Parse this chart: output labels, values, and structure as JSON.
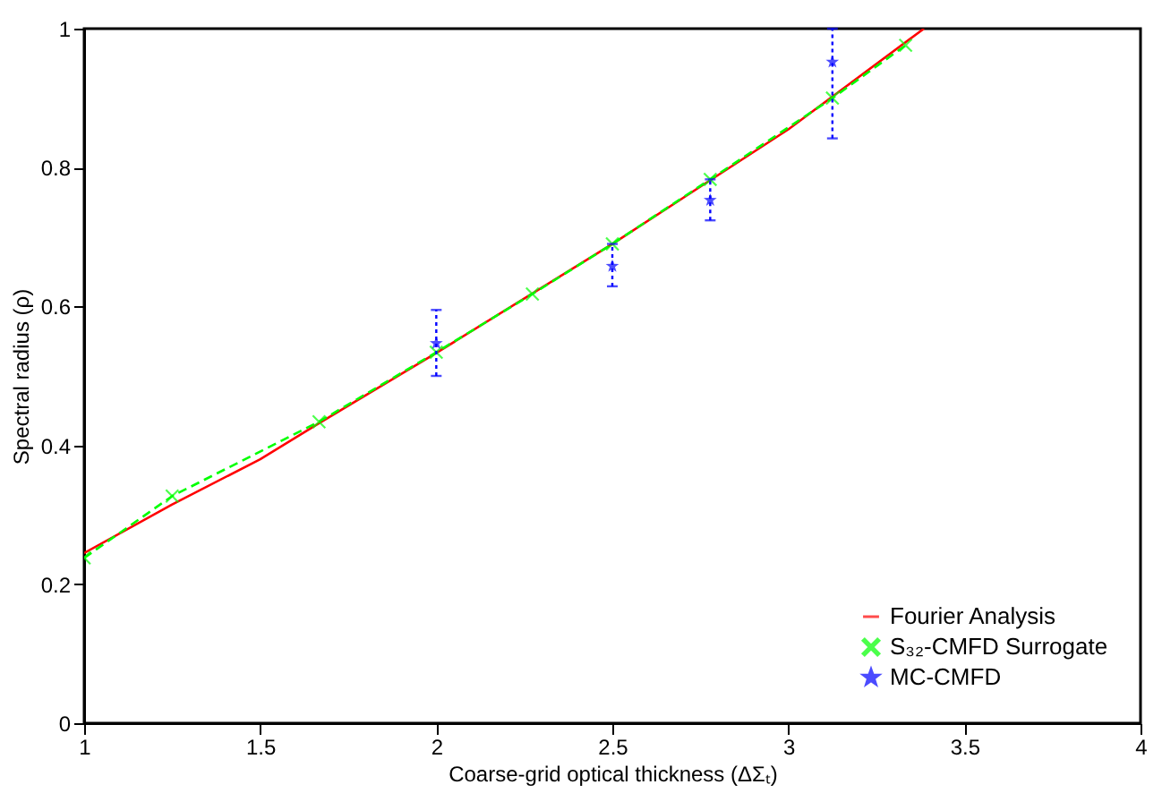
{
  "chart_data": {
    "type": "line",
    "xlabel": "Coarse-grid optical thickness (ΔΣₜ)",
    "ylabel": "Spectral radius (ρ)",
    "xlim": [
      1,
      4
    ],
    "xticks": [
      1,
      1.5,
      2,
      2.5,
      3,
      3.5,
      4
    ],
    "ylim": [
      0,
      1
    ],
    "yticks": [
      0,
      0.2,
      0.4,
      0.6,
      0.8,
      1
    ],
    "grid": false,
    "legend": "bottom right",
    "series": [
      {
        "name": "Fourier Analysis",
        "color": "#ff0000",
        "marker": "none",
        "line_style": "solid",
        "x": [
          1,
          1.25,
          1.5,
          1.667,
          2,
          2.5,
          3,
          3.385
        ],
        "values": [
          0.245,
          0.315,
          0.38,
          0.432,
          0.533,
          0.69,
          0.855,
          1.0
        ]
      },
      {
        "name": "S₃₂-CMFD Surrogate",
        "color": "#00ff00",
        "marker": "cross",
        "line_style": "dashed",
        "x": [
          1,
          1.25,
          1.667,
          2,
          2.273,
          2.5,
          2.778,
          3.125,
          3.333
        ],
        "values": [
          0.238,
          0.327,
          0.434,
          0.534,
          0.618,
          0.69,
          0.783,
          0.9,
          0.976
        ]
      },
      {
        "name": "MC-CMFD",
        "type": "scatter",
        "color": "#0000ff",
        "marker": "star",
        "line_style": "dotted",
        "x": [
          2,
          2.5,
          2.778,
          3.125
        ],
        "values": [
          0.547,
          0.658,
          0.753,
          0.952
        ],
        "errors": [
          [
            0.5,
            0.595
          ],
          [
            0.629,
            0.69
          ],
          [
            0.724,
            0.783
          ],
          [
            0.842,
            1.0
          ]
        ]
      }
    ]
  }
}
